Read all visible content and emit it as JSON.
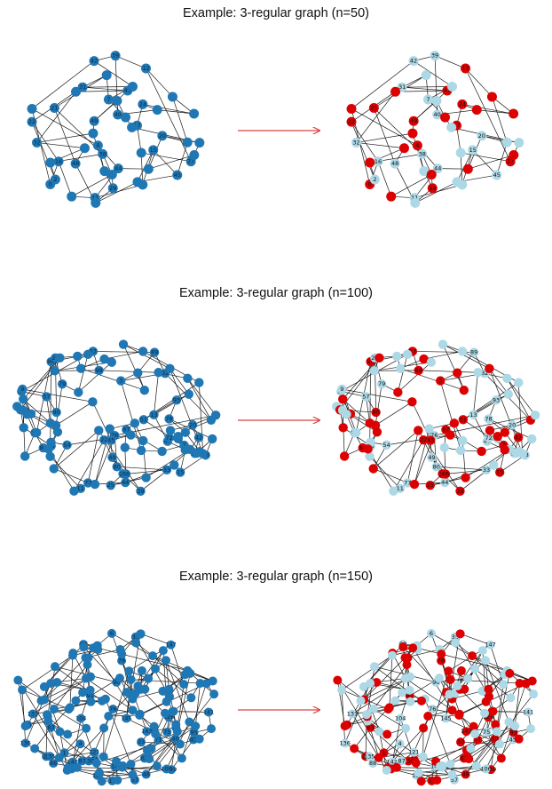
{
  "colors": {
    "original_node": "#1f77b4",
    "cut_side_a": "#dd0000",
    "cut_side_b": "#add8e6",
    "arrow": "#e04040",
    "edge": "#1a1a1a"
  },
  "examples": [
    {
      "title": "Example: 3-regular graph (n=50)",
      "visible_node_labels": [
        "44",
        "4",
        "42",
        "27",
        "15",
        "47",
        "48",
        "22",
        "16",
        "31",
        "45",
        "40",
        "38",
        "49",
        "0",
        "12",
        "17",
        "2",
        "20",
        "24",
        "11",
        "39",
        "7",
        "32",
        "21",
        "29"
      ]
    },
    {
      "title": "Example: 3-regular graph (n=100)",
      "visible_node_labels": [
        "80",
        "57",
        "53",
        "25",
        "29",
        "28",
        "91",
        "49",
        "44",
        "76",
        "63",
        "89",
        "98",
        "3",
        "47",
        "82",
        "90",
        "15",
        "22",
        "96",
        "7",
        "95",
        "13",
        "66",
        "33",
        "30",
        "62",
        "45",
        "79",
        "72",
        "42",
        "97",
        "93",
        "51",
        "20",
        "77",
        "84",
        "9",
        "24",
        "18",
        "54",
        "11",
        "78"
      ]
    },
    {
      "title": "Example: 3-regular graph (n=150)",
      "visible_node_labels": [
        "14",
        "145",
        "126",
        "51",
        "142",
        "91",
        "90",
        "20",
        "25",
        "83",
        "75",
        "48",
        "1",
        "139",
        "136",
        "45",
        "141",
        "60",
        "130",
        "57",
        "76",
        "121",
        "104",
        "35",
        "87",
        "17",
        "78",
        "135",
        "71",
        "4",
        "40",
        "143",
        "131",
        "33",
        "147",
        "6",
        "88",
        "105",
        "106",
        "63",
        "99",
        "95"
      ]
    }
  ]
}
